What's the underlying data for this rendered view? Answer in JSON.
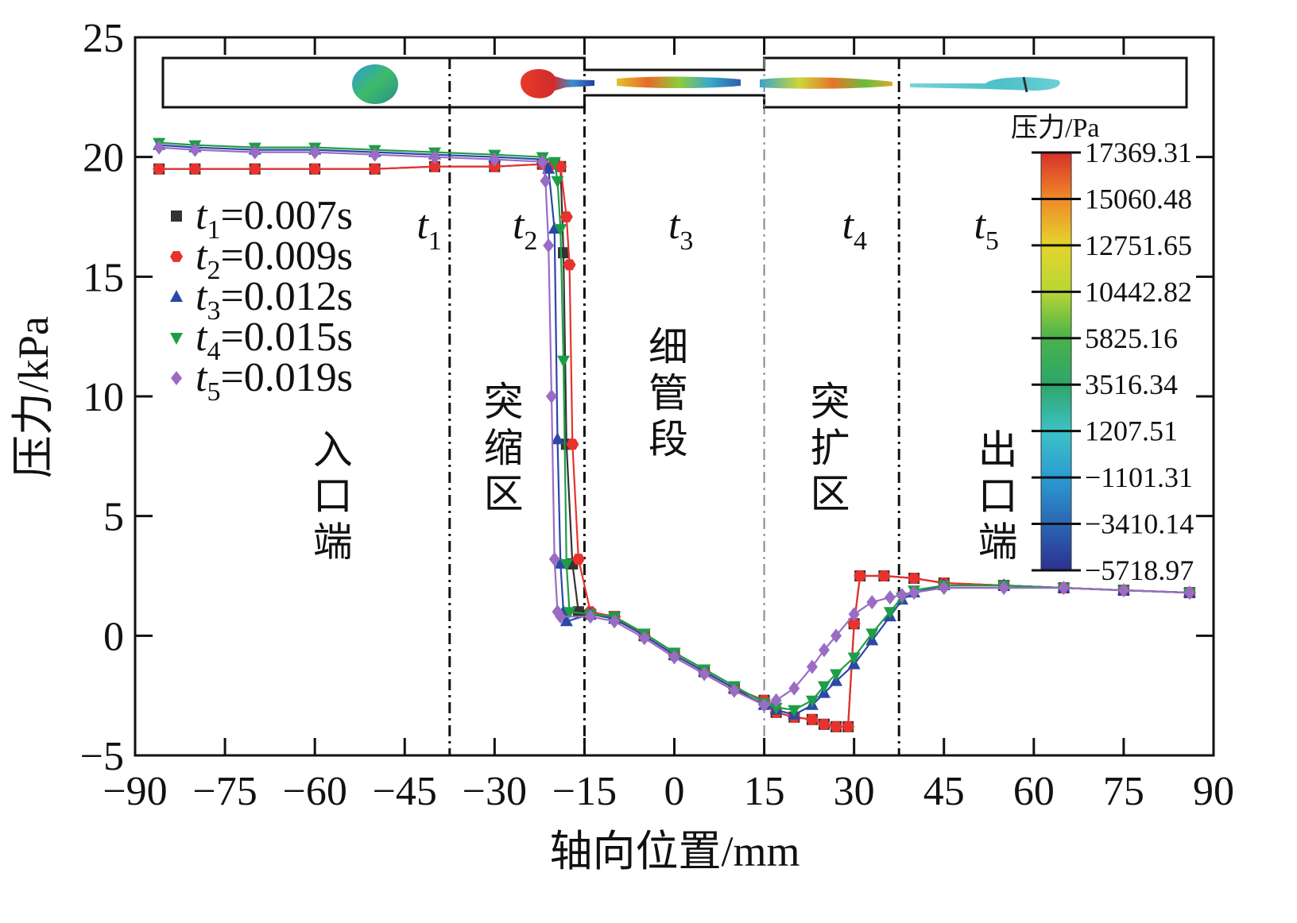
{
  "chart_data": {
    "type": "line",
    "title": "",
    "xlabel": "轴向位置/mm",
    "ylabel": "压力/kPa",
    "xlim": [
      -90,
      90
    ],
    "ylim": [
      -5,
      25
    ],
    "xticks": [
      -90,
      -75,
      -60,
      -45,
      -30,
      -15,
      0,
      15,
      30,
      45,
      60,
      75,
      90
    ],
    "yticks": [
      -5,
      0,
      5,
      10,
      15,
      20,
      25
    ],
    "xtick_labels": [
      "−90",
      "−75",
      "−60",
      "−45",
      "−30",
      "−15",
      "0",
      "15",
      "30",
      "45",
      "60",
      "75",
      "90"
    ],
    "ytick_labels": [
      "−5",
      "0",
      "5",
      "10",
      "15",
      "20",
      "25"
    ],
    "section_boundaries": [
      {
        "x": -37.5,
        "style": "dashdot"
      },
      {
        "x": -15,
        "style": "dashdot"
      },
      {
        "x": 15,
        "style": "dashdot-light"
      },
      {
        "x": 37.5,
        "style": "dashdot"
      }
    ],
    "stages": [
      {
        "sym": "t",
        "sub": "1",
        "x": -43
      },
      {
        "sym": "t",
        "sub": "2",
        "x": -27
      },
      {
        "sym": "t",
        "sub": "3",
        "x": -1
      },
      {
        "sym": "t",
        "sub": "4",
        "x": 28
      },
      {
        "sym": "t",
        "sub": "5",
        "x": 50
      }
    ],
    "regions": [
      {
        "text": "入口端",
        "x": -57,
        "y": 7.2
      },
      {
        "text": "突缩区",
        "x": -28.5,
        "y": 9.2
      },
      {
        "text": "细管段",
        "x": -1,
        "y": 11.5
      },
      {
        "text": "突扩区",
        "x": 26,
        "y": 9.2
      },
      {
        "text": "出口端",
        "x": 54,
        "y": 7.2
      }
    ],
    "series": [
      {
        "name": "t1=0.007s",
        "sym": "t",
        "sub": "1",
        "val": "=0.007s",
        "color": "#333333",
        "marker": "square",
        "x": [
          -86,
          -80,
          -70,
          -60,
          -50,
          -40,
          -30,
          -22,
          -20,
          -19,
          -18.5,
          -18,
          -17,
          -16,
          -14,
          -10,
          -5,
          0,
          5,
          10,
          15,
          17,
          20,
          23,
          25,
          27,
          29,
          30,
          31,
          35,
          40,
          45,
          55,
          65,
          75,
          86
        ],
        "y": [
          19.5,
          19.5,
          19.5,
          19.5,
          19.5,
          19.6,
          19.6,
          19.7,
          19.7,
          19.6,
          16.0,
          8.0,
          3.0,
          1.0,
          0.9,
          0.8,
          0.0,
          -0.8,
          -1.5,
          -2.2,
          -2.7,
          -3.2,
          -3.4,
          -3.5,
          -3.7,
          -3.8,
          -3.8,
          0.5,
          2.5,
          2.5,
          2.4,
          2.2,
          2.1,
          2.0,
          1.9,
          1.8
        ]
      },
      {
        "name": "t2=0.009s",
        "sym": "t",
        "sub": "2",
        "val": "=0.009s",
        "color": "#e8322e",
        "marker": "hexagon",
        "x": [
          -86,
          -80,
          -70,
          -60,
          -50,
          -40,
          -30,
          -22,
          -20,
          -19,
          -18,
          -17.5,
          -17,
          -16,
          -14,
          -10,
          -5,
          0,
          5,
          10,
          15,
          17,
          20,
          23,
          25,
          27,
          29,
          30,
          31,
          35,
          40,
          45,
          55,
          65,
          75,
          86
        ],
        "y": [
          19.5,
          19.5,
          19.5,
          19.5,
          19.5,
          19.6,
          19.6,
          19.7,
          19.7,
          19.6,
          17.5,
          15.5,
          8.0,
          3.2,
          1.0,
          0.8,
          0.0,
          -0.8,
          -1.5,
          -2.2,
          -2.7,
          -3.2,
          -3.4,
          -3.5,
          -3.7,
          -3.8,
          -3.8,
          0.5,
          2.5,
          2.5,
          2.4,
          2.2,
          2.1,
          2.0,
          1.9,
          1.8
        ]
      },
      {
        "name": "t3=0.012s",
        "sym": "t",
        "sub": "3",
        "val": "=0.012s",
        "color": "#2b47a8",
        "marker": "triangle-up",
        "x": [
          -86,
          -80,
          -70,
          -60,
          -50,
          -40,
          -30,
          -22,
          -21,
          -20,
          -19.5,
          -19,
          -18.5,
          -18,
          -14,
          -10,
          -5,
          0,
          5,
          10,
          15,
          17,
          20,
          23,
          25,
          27,
          30,
          33,
          36,
          38,
          40,
          45,
          55,
          65,
          75,
          86
        ],
        "y": [
          20.5,
          20.4,
          20.3,
          20.3,
          20.2,
          20.1,
          20.0,
          19.9,
          19.5,
          17.0,
          8.2,
          3.0,
          1.0,
          0.6,
          0.9,
          0.7,
          0.0,
          -0.8,
          -1.5,
          -2.2,
          -2.9,
          -3.1,
          -3.3,
          -2.9,
          -2.4,
          -1.9,
          -1.2,
          -0.2,
          0.8,
          1.5,
          1.8,
          2.1,
          2.1,
          2.0,
          1.9,
          1.8
        ]
      },
      {
        "name": "t4=0.015s",
        "sym": "t",
        "sub": "4",
        "val": "=0.015s",
        "color": "#1f9d46",
        "marker": "triangle-down",
        "x": [
          -86,
          -80,
          -70,
          -60,
          -50,
          -40,
          -30,
          -22,
          -20,
          -19.5,
          -19,
          -18.5,
          -18,
          -17.5,
          -14,
          -10,
          -5,
          0,
          5,
          10,
          15,
          17,
          20,
          23,
          25,
          27,
          30,
          33,
          36,
          38,
          40,
          45,
          55,
          65,
          75,
          86
        ],
        "y": [
          20.6,
          20.5,
          20.4,
          20.4,
          20.3,
          20.2,
          20.1,
          20.0,
          19.8,
          19.0,
          17.0,
          11.5,
          3.0,
          1.0,
          0.9,
          0.8,
          0.1,
          -0.7,
          -1.4,
          -2.1,
          -2.8,
          -3.0,
          -3.1,
          -2.7,
          -2.1,
          -1.6,
          -0.9,
          0.1,
          1.0,
          1.6,
          1.9,
          2.1,
          2.1,
          2.0,
          1.9,
          1.8
        ]
      },
      {
        "name": "t5=0.019s",
        "sym": "t",
        "sub": "5",
        "val": "=0.019s",
        "color": "#9a6cc4",
        "marker": "diamond",
        "x": [
          -86,
          -80,
          -70,
          -60,
          -50,
          -40,
          -30,
          -22,
          -21.5,
          -21,
          -20.5,
          -20,
          -19.5,
          -19,
          -14,
          -10,
          -5,
          0,
          5,
          10,
          15,
          17,
          20,
          23,
          25,
          27,
          30,
          33,
          36,
          38,
          40,
          45,
          55,
          65,
          75,
          86
        ],
        "y": [
          20.4,
          20.3,
          20.2,
          20.2,
          20.1,
          20.0,
          19.9,
          19.8,
          19.0,
          16.3,
          10.0,
          3.2,
          1.0,
          0.8,
          0.8,
          0.6,
          -0.1,
          -0.9,
          -1.6,
          -2.3,
          -2.9,
          -2.7,
          -2.2,
          -1.3,
          -0.6,
          0.0,
          0.9,
          1.4,
          1.6,
          1.7,
          1.8,
          2.0,
          2.0,
          2.0,
          1.9,
          1.8
        ]
      }
    ],
    "legend_position": "upper-left",
    "colorbar": {
      "title": "压力/Pa",
      "labels": [
        "17369.31",
        "15060.48",
        "12751.65",
        "10442.82",
        "5825.16",
        "3516.34",
        "1207.51",
        "−1101.31",
        "−3410.14",
        "−5718.97"
      ],
      "colors": [
        "#d7302a",
        "#f08a28",
        "#e5d42c",
        "#b9d634",
        "#48b24b",
        "#2ea56a",
        "#3dc2c6",
        "#2b9cd3",
        "#2b66b3",
        "#2c3191"
      ]
    },
    "inset_channel": {
      "description_colors": {
        "drop_green": "#3fae6a",
        "drop_red": "#e33b2e",
        "drop_teal": "#5cc9cf"
      }
    }
  }
}
